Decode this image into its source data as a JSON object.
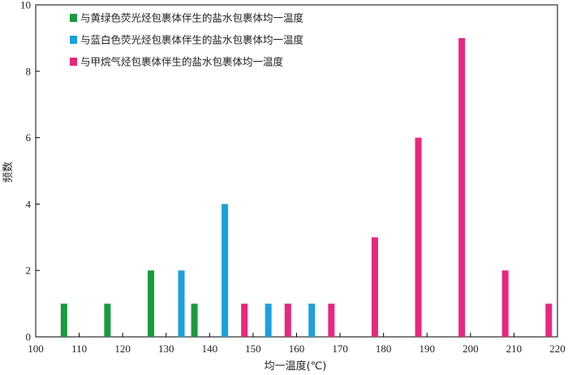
{
  "chart_data": {
    "type": "bar",
    "xlabel": "均一温度(℃)",
    "ylabel": "频数",
    "xlim": [
      100,
      220
    ],
    "ylim": [
      0,
      10
    ],
    "xticks": [
      100,
      110,
      120,
      130,
      140,
      150,
      160,
      170,
      180,
      190,
      200,
      210,
      220
    ],
    "yticks": [
      0,
      2,
      4,
      6,
      8,
      10
    ],
    "grid": false,
    "legend_position": "top-left",
    "series": [
      {
        "name": "与黄绿色荧光烃包裹体伴生的盐水包裹体均一温度",
        "color": "#1a9a3f",
        "points": [
          {
            "x": 106.5,
            "y": 1
          },
          {
            "x": 116.5,
            "y": 1
          },
          {
            "x": 126.5,
            "y": 2
          },
          {
            "x": 136.5,
            "y": 1
          }
        ]
      },
      {
        "name": "与蓝白色荧光烃包裹体伴生的盐水包裹体均一温度",
        "color": "#1ba1db",
        "points": [
          {
            "x": 133.5,
            "y": 2
          },
          {
            "x": 143.5,
            "y": 4
          },
          {
            "x": 153.5,
            "y": 1
          },
          {
            "x": 163.5,
            "y": 1
          }
        ]
      },
      {
        "name": "与甲烷气烃包裹体伴生的盐水包裹体均一温度",
        "color": "#e6287f",
        "points": [
          {
            "x": 148,
            "y": 1
          },
          {
            "x": 158,
            "y": 1
          },
          {
            "x": 168,
            "y": 1
          },
          {
            "x": 178,
            "y": 3
          },
          {
            "x": 188,
            "y": 6
          },
          {
            "x": 198,
            "y": 9
          },
          {
            "x": 208,
            "y": 2
          },
          {
            "x": 218,
            "y": 1
          }
        ]
      }
    ]
  }
}
